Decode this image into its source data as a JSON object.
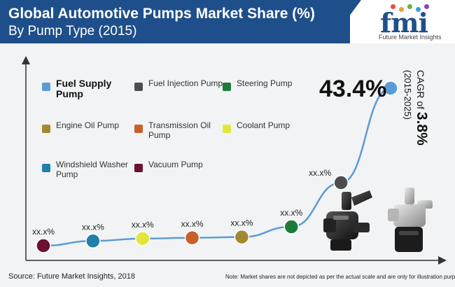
{
  "header": {
    "title": "Global Automotive Pumps Market Share (%)",
    "subtitle": "By Pump Type (2015)"
  },
  "logo": {
    "word": "fmi",
    "tagline": "Future Market Insights",
    "dot_colors": [
      "#e94e3c",
      "#f29b38",
      "#6ab04c",
      "#3aa0d8",
      "#8e44ad"
    ]
  },
  "colors": {
    "accent": "#1e4f8a",
    "line": "#5b9bd5",
    "axis": "#333333"
  },
  "highlight": {
    "value": "43.4%",
    "cagr_prefix": "CAGR of ",
    "cagr_value": "3.8%",
    "cagr_period": "(2015-2025)"
  },
  "chart_data": {
    "type": "line",
    "title": "Global Automotive Pumps Market Share (%)",
    "subtitle": "By Pump Type (2015)",
    "series": [
      {
        "points": [
          {
            "category": "Vacuum Pump",
            "label": "xx.x%",
            "color": "#6b1131",
            "level": 0.0
          },
          {
            "category": "Windshield Washer Pump",
            "label": "xx.x%",
            "color": "#1f7fa8",
            "level": 0.03
          },
          {
            "category": "Coolant Pump",
            "label": "xx.x%",
            "color": "#e3e63a",
            "level": 0.045
          },
          {
            "category": "Transmission Oil Pump",
            "label": "xx.x%",
            "color": "#c8602b",
            "level": 0.05
          },
          {
            "category": "Engine Oil Pump",
            "label": "xx.x%",
            "color": "#a2892f",
            "level": 0.055
          },
          {
            "category": "Steering Pump",
            "label": "xx.x%",
            "color": "#1d7a3b",
            "level": 0.12
          },
          {
            "category": "Fuel Injection Pump",
            "label": "xx.x%",
            "color": "#4d4d4d",
            "level": 0.4
          },
          {
            "category": "Fuel Supply Pump",
            "label": "",
            "color": "#5b9bd5",
            "level": 1.0
          }
        ]
      }
    ],
    "legend": [
      {
        "name": "Fuel Supply Pump",
        "color": "#5b9bd5",
        "bold": true
      },
      {
        "name": "Fuel Injection Pump",
        "color": "#4d4d4d",
        "bold": false
      },
      {
        "name": "Steering Pump",
        "color": "#1d7a3b",
        "bold": false
      },
      {
        "name": "Engine Oil Pump",
        "color": "#a2892f",
        "bold": false
      },
      {
        "name": "Transmission Oil Pump",
        "color": "#c8602b",
        "bold": false
      },
      {
        "name": "Coolant Pump",
        "color": "#e3e63a",
        "bold": false
      },
      {
        "name": "Windshield Washer Pump",
        "color": "#1f7fa8",
        "bold": false
      },
      {
        "name": "Vacuum Pump",
        "color": "#6b1131",
        "bold": false
      }
    ],
    "legend_placement": "top-left",
    "grid": false
  },
  "footer": {
    "source": "Source: Future Market Insights, 2018",
    "note": "Note: Market shares are not depicted as per the actual scale and are only for illustration purposes."
  }
}
